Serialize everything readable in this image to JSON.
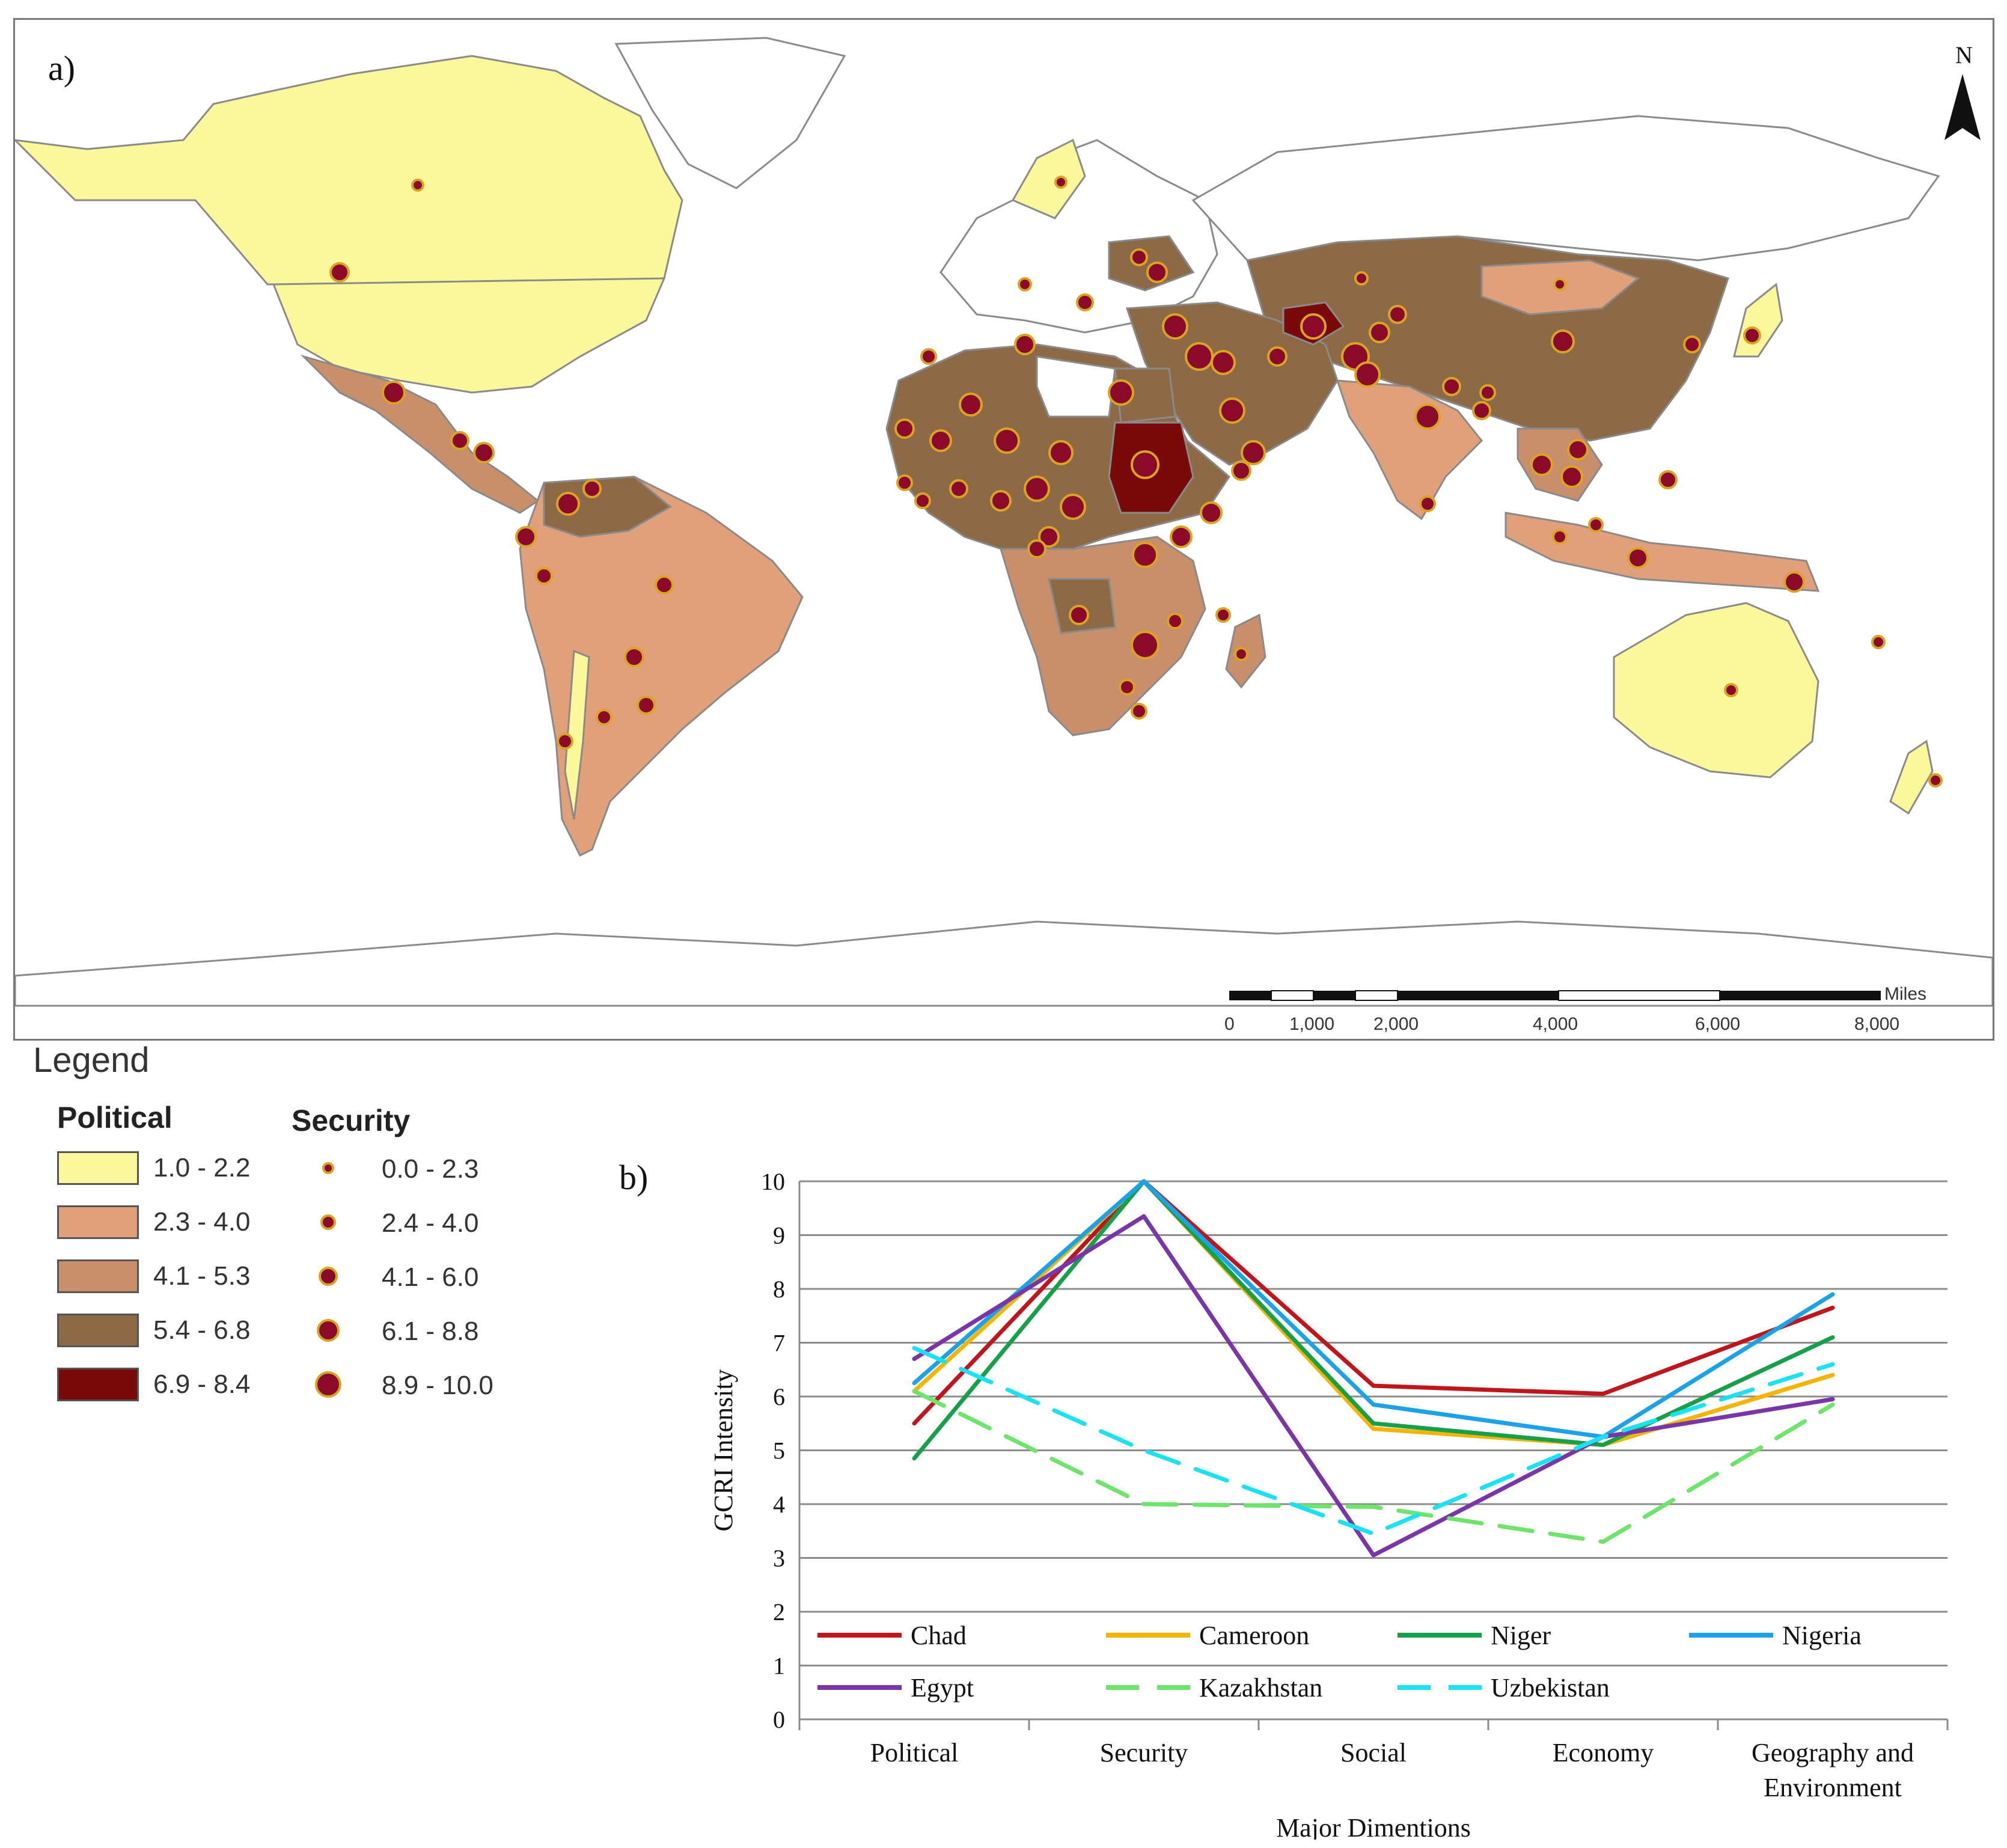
{
  "panel_a_label": "a)",
  "panel_b_label": "b)",
  "north_arrow": {
    "letter": "N",
    "icon": "north-arrow-icon"
  },
  "scale_bar": {
    "unit": "Miles",
    "ticks": [
      "0",
      "1,000",
      "2,000",
      "4,000",
      "6,000",
      "8,000"
    ]
  },
  "legend": {
    "title": "Legend",
    "political": {
      "heading": "Political",
      "classes": [
        {
          "label": "1.0 - 2.2",
          "color": "#fbf79b"
        },
        {
          "label": "2.3 - 4.0",
          "color": "#e0a07a"
        },
        {
          "label": "4.1 - 5.3",
          "color": "#c98f6a"
        },
        {
          "label": "5.4 - 6.8",
          "color": "#8c6a45"
        },
        {
          "label": "6.9 - 8.4",
          "color": "#7a0a0a"
        }
      ]
    },
    "security": {
      "heading": "Security",
      "classes": [
        {
          "label": "0.0 - 2.3",
          "size_rank": 1
        },
        {
          "label": "2.4 - 4.0",
          "size_rank": 2
        },
        {
          "label": "4.1 - 6.0",
          "size_rank": 3
        },
        {
          "label": "6.1 - 8.8",
          "size_rank": 4
        },
        {
          "label": "8.9 - 10.0",
          "size_rank": 5
        }
      ]
    }
  },
  "colors": {
    "political_low": "#fbf79b",
    "political_mid": "#e0a07a",
    "political_high": "#8c6a45",
    "political_max": "#7a0a0a",
    "security_dot": "#8b0a2a",
    "security_ring": "#d9a520"
  },
  "chart_data": {
    "type": "line",
    "title": "",
    "xlabel": "Major Dimentions",
    "ylabel": "GCRI Intensity",
    "ylim": [
      0,
      10
    ],
    "yticks": [
      "0",
      "1",
      "2",
      "3",
      "4",
      "5",
      "6",
      "7",
      "8",
      "9",
      "10"
    ],
    "categories": [
      "Political",
      "Security",
      "Social",
      "Economy",
      "Geography and Environment"
    ],
    "category_lines": [
      [
        "Political"
      ],
      [
        "Security"
      ],
      [
        "Social"
      ],
      [
        "Economy"
      ],
      [
        "Geography and",
        "Environment"
      ]
    ],
    "series": [
      {
        "name": "Chad",
        "color": "#c0161b",
        "dashed": false,
        "values": [
          5.5,
          10.0,
          6.2,
          6.05,
          7.65
        ]
      },
      {
        "name": "Cameroon",
        "color": "#f5b400",
        "dashed": false,
        "values": [
          6.1,
          10.0,
          5.4,
          5.1,
          6.4
        ]
      },
      {
        "name": "Niger",
        "color": "#17a04a",
        "dashed": false,
        "values": [
          4.85,
          10.0,
          5.5,
          5.1,
          7.1
        ]
      },
      {
        "name": "Nigeria",
        "color": "#1aa3e8",
        "dashed": false,
        "values": [
          6.25,
          10.0,
          5.85,
          5.25,
          7.9
        ]
      },
      {
        "name": "Egypt",
        "color": "#7a35a8",
        "dashed": false,
        "values": [
          6.7,
          9.35,
          3.05,
          5.25,
          5.95
        ]
      },
      {
        "name": "Kazakhstan",
        "color": "#6ce56a",
        "dashed": true,
        "values": [
          6.1,
          4.0,
          3.95,
          3.3,
          5.85
        ]
      },
      {
        "name": "Uzbekistan",
        "color": "#19e3f2",
        "dashed": true,
        "values": [
          6.9,
          5.0,
          3.45,
          5.25,
          6.6
        ]
      }
    ]
  }
}
